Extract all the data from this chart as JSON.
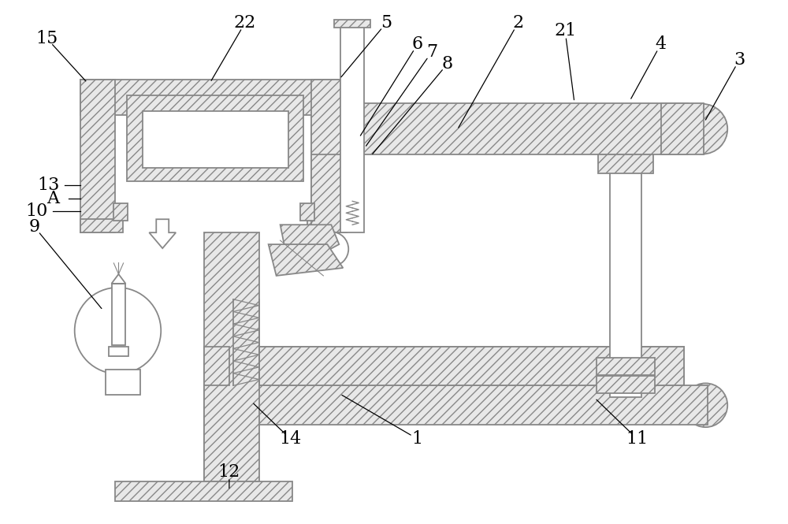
{
  "bg": "#ffffff",
  "lc": "#888888",
  "lw": 1.3,
  "hatch": "///",
  "fc_hatch": "#e8e8e8",
  "label_fs": 16,
  "fig_w": 10.0,
  "fig_h": 6.65,
  "dpi": 100,
  "labels": [
    [
      "15",
      58,
      48,
      110,
      105
    ],
    [
      "22",
      310,
      28,
      265,
      105
    ],
    [
      "5",
      490,
      28,
      430,
      100
    ],
    [
      "6",
      530,
      55,
      455,
      175
    ],
    [
      "7",
      548,
      65,
      462,
      188
    ],
    [
      "8",
      568,
      80,
      470,
      198
    ],
    [
      "2",
      658,
      28,
      580,
      165
    ],
    [
      "21",
      718,
      38,
      730,
      130
    ],
    [
      "4",
      840,
      55,
      800,
      128
    ],
    [
      "3",
      940,
      75,
      895,
      155
    ],
    [
      "13",
      60,
      235,
      null,
      null
    ],
    [
      "A",
      65,
      252,
      null,
      null
    ],
    [
      "10",
      45,
      268,
      null,
      null
    ],
    [
      "9",
      42,
      288,
      130,
      395
    ],
    [
      "1",
      530,
      558,
      430,
      500
    ],
    [
      "11",
      810,
      558,
      755,
      505
    ],
    [
      "12",
      290,
      600,
      290,
      625
    ],
    [
      "14",
      368,
      558,
      318,
      510
    ]
  ]
}
